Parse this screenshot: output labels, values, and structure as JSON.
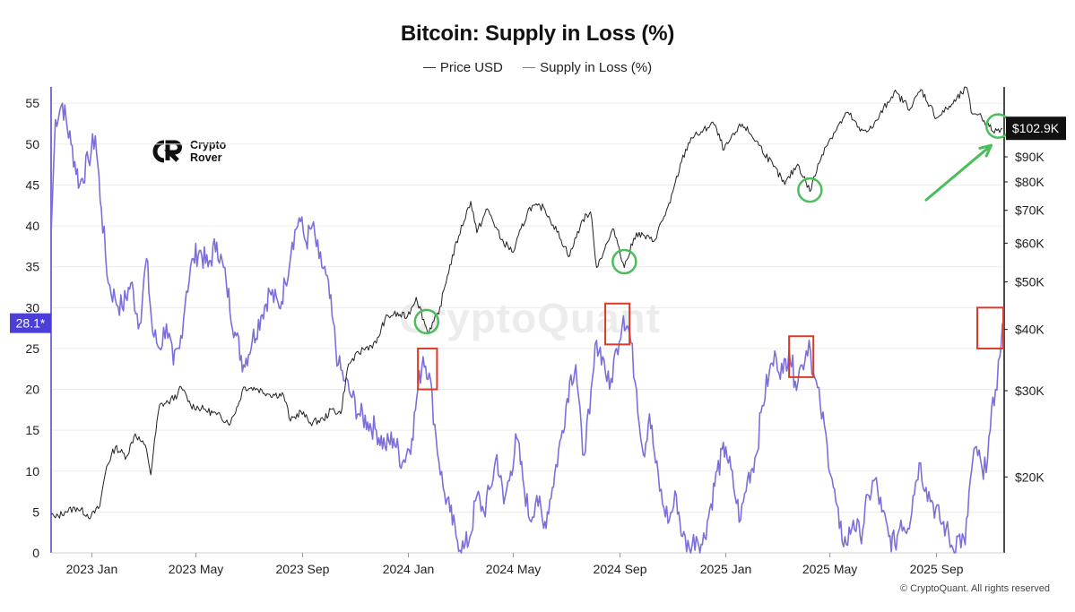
{
  "chart_data": {
    "type": "line",
    "title": "Bitcoin: Supply in Loss (%)",
    "legend": [
      {
        "name": "Price USD",
        "color": "#333333"
      },
      {
        "name": "Supply in Loss (%)",
        "color": "#7b6fdc"
      }
    ],
    "x_ticks": [
      "2023 Jan",
      "2023 May",
      "2023 Sep",
      "2024 Jan",
      "2024 May",
      "2024 Sep",
      "2025 Jan",
      "2025 May",
      "2025 Sep"
    ],
    "x_tick_dates": [
      "2023-01-01",
      "2023-05-01",
      "2023-09-01",
      "2024-01-01",
      "2024-05-01",
      "2024-09-01",
      "2025-01-01",
      "2025-05-01",
      "2025-09-01"
    ],
    "x_range": [
      "2022-11-15",
      "2025-11-18"
    ],
    "left_axis": {
      "ticks": [
        0,
        5,
        10,
        15,
        20,
        25,
        30,
        35,
        40,
        45,
        50,
        55
      ],
      "range": [
        0,
        57
      ]
    },
    "right_axis": {
      "scale": "log",
      "ticks": [
        "$20K",
        "$30K",
        "$40K",
        "$50K",
        "$60K",
        "$70K",
        "$80K",
        "$90K"
      ],
      "tick_values": [
        20000,
        30000,
        40000,
        50000,
        60000,
        70000,
        80000,
        90000
      ],
      "range": [
        14000,
        125000
      ]
    },
    "current_loss_label": "28.1*",
    "current_loss_value": 28.1,
    "current_price_label": "$102.9K",
    "current_price_value": 102900,
    "series": [
      {
        "name": "Supply in Loss (%)",
        "points": [
          [
            "2022-11-15",
            39
          ],
          [
            "2022-11-20",
            53
          ],
          [
            "2022-11-28",
            55
          ],
          [
            "2022-12-08",
            50
          ],
          [
            "2022-12-18",
            45
          ],
          [
            "2022-12-28",
            48
          ],
          [
            "2023-01-05",
            51
          ],
          [
            "2023-01-12",
            42
          ],
          [
            "2023-01-20",
            33
          ],
          [
            "2023-01-28",
            31
          ],
          [
            "2023-02-05",
            30
          ],
          [
            "2023-02-15",
            33
          ],
          [
            "2023-02-25",
            28
          ],
          [
            "2023-03-05",
            36
          ],
          [
            "2023-03-12",
            27
          ],
          [
            "2023-03-20",
            25
          ],
          [
            "2023-03-28",
            28
          ],
          [
            "2023-04-05",
            23
          ],
          [
            "2023-04-12",
            25
          ],
          [
            "2023-04-20",
            32
          ],
          [
            "2023-04-28",
            36
          ],
          [
            "2023-05-05",
            37
          ],
          [
            "2023-05-15",
            35
          ],
          [
            "2023-05-25",
            38
          ],
          [
            "2023-06-05",
            33
          ],
          [
            "2023-06-15",
            27
          ],
          [
            "2023-06-25",
            23
          ],
          [
            "2023-07-05",
            26
          ],
          [
            "2023-07-15",
            29
          ],
          [
            "2023-07-25",
            32
          ],
          [
            "2023-08-05",
            30
          ],
          [
            "2023-08-12",
            33
          ],
          [
            "2023-08-20",
            38
          ],
          [
            "2023-08-28",
            41
          ],
          [
            "2023-09-05",
            38
          ],
          [
            "2023-09-12",
            40
          ],
          [
            "2023-09-20",
            36
          ],
          [
            "2023-09-28",
            34
          ],
          [
            "2023-10-05",
            29
          ],
          [
            "2023-10-12",
            23
          ],
          [
            "2023-10-20",
            21
          ],
          [
            "2023-10-28",
            19
          ],
          [
            "2023-11-05",
            17
          ],
          [
            "2023-11-15",
            16
          ],
          [
            "2023-11-25",
            15
          ],
          [
            "2023-12-05",
            13
          ],
          [
            "2023-12-15",
            14
          ],
          [
            "2023-12-25",
            11
          ],
          [
            "2024-01-05",
            14
          ],
          [
            "2024-01-12",
            20
          ],
          [
            "2024-01-18",
            24
          ],
          [
            "2024-01-25",
            22
          ],
          [
            "2024-02-02",
            14
          ],
          [
            "2024-02-10",
            8
          ],
          [
            "2024-02-18",
            5
          ],
          [
            "2024-02-25",
            2
          ],
          [
            "2024-03-05",
            0.5
          ],
          [
            "2024-03-12",
            2
          ],
          [
            "2024-03-20",
            7
          ],
          [
            "2024-03-28",
            5
          ],
          [
            "2024-04-05",
            8
          ],
          [
            "2024-04-12",
            12
          ],
          [
            "2024-04-20",
            6
          ],
          [
            "2024-04-28",
            10
          ],
          [
            "2024-05-05",
            14
          ],
          [
            "2024-05-12",
            9
          ],
          [
            "2024-05-20",
            4
          ],
          [
            "2024-05-28",
            7
          ],
          [
            "2024-06-05",
            3
          ],
          [
            "2024-06-15",
            8
          ],
          [
            "2024-06-25",
            14
          ],
          [
            "2024-07-05",
            21
          ],
          [
            "2024-07-12",
            23
          ],
          [
            "2024-07-20",
            12
          ],
          [
            "2024-07-28",
            17
          ],
          [
            "2024-08-05",
            26
          ],
          [
            "2024-08-12",
            24
          ],
          [
            "2024-08-20",
            20
          ],
          [
            "2024-08-28",
            25
          ],
          [
            "2024-09-05",
            29
          ],
          [
            "2024-09-12",
            27
          ],
          [
            "2024-09-20",
            20
          ],
          [
            "2024-09-28",
            12
          ],
          [
            "2024-10-05",
            17
          ],
          [
            "2024-10-12",
            11
          ],
          [
            "2024-10-20",
            6
          ],
          [
            "2024-10-28",
            4
          ],
          [
            "2024-11-05",
            7
          ],
          [
            "2024-11-12",
            2
          ],
          [
            "2024-11-20",
            0.5
          ],
          [
            "2024-11-28",
            2
          ],
          [
            "2024-12-05",
            1
          ],
          [
            "2024-12-15",
            6
          ],
          [
            "2024-12-22",
            10
          ],
          [
            "2025-01-01",
            13
          ],
          [
            "2025-01-10",
            8
          ],
          [
            "2025-01-18",
            4
          ],
          [
            "2025-01-26",
            9
          ],
          [
            "2025-02-05",
            12
          ],
          [
            "2025-02-12",
            18
          ],
          [
            "2025-02-20",
            22
          ],
          [
            "2025-02-28",
            24
          ],
          [
            "2025-03-08",
            22
          ],
          [
            "2025-03-15",
            25
          ],
          [
            "2025-03-22",
            21
          ],
          [
            "2025-03-30",
            23
          ],
          [
            "2025-04-07",
            26
          ],
          [
            "2025-04-12",
            22
          ],
          [
            "2025-04-20",
            18
          ],
          [
            "2025-04-28",
            13
          ],
          [
            "2025-05-05",
            8
          ],
          [
            "2025-05-12",
            3
          ],
          [
            "2025-05-20",
            1
          ],
          [
            "2025-05-28",
            4
          ],
          [
            "2025-06-05",
            2
          ],
          [
            "2025-06-15",
            7
          ],
          [
            "2025-06-22",
            9
          ],
          [
            "2025-06-30",
            5
          ],
          [
            "2025-07-08",
            2
          ],
          [
            "2025-07-15",
            1
          ],
          [
            "2025-07-22",
            4
          ],
          [
            "2025-07-30",
            3
          ],
          [
            "2025-08-05",
            7
          ],
          [
            "2025-08-12",
            11
          ],
          [
            "2025-08-20",
            8
          ],
          [
            "2025-08-28",
            6
          ],
          [
            "2025-09-05",
            4
          ],
          [
            "2025-09-12",
            3
          ],
          [
            "2025-09-20",
            0.5
          ],
          [
            "2025-09-26",
            2
          ],
          [
            "2025-10-04",
            1
          ],
          [
            "2025-10-10",
            9
          ],
          [
            "2025-10-17",
            13
          ],
          [
            "2025-10-25",
            9
          ],
          [
            "2025-11-02",
            15
          ],
          [
            "2025-11-08",
            20
          ],
          [
            "2025-11-13",
            24
          ],
          [
            "2025-11-16",
            28.1
          ]
        ]
      },
      {
        "name": "Price USD",
        "points": [
          [
            "2022-11-15",
            16800
          ],
          [
            "2022-11-20",
            16500
          ],
          [
            "2022-12-01",
            17000
          ],
          [
            "2022-12-15",
            17300
          ],
          [
            "2022-12-31",
            16600
          ],
          [
            "2023-01-10",
            17400
          ],
          [
            "2023-01-18",
            21000
          ],
          [
            "2023-01-28",
            23000
          ],
          [
            "2023-02-10",
            22000
          ],
          [
            "2023-02-20",
            24500
          ],
          [
            "2023-03-05",
            22800
          ],
          [
            "2023-03-10",
            20200
          ],
          [
            "2023-03-20",
            28000
          ],
          [
            "2023-03-30",
            28400
          ],
          [
            "2023-04-10",
            29500
          ],
          [
            "2023-04-14",
            30500
          ],
          [
            "2023-04-25",
            28000
          ],
          [
            "2023-05-10",
            27500
          ],
          [
            "2023-05-25",
            26800
          ],
          [
            "2023-06-10",
            25800
          ],
          [
            "2023-06-20",
            28500
          ],
          [
            "2023-06-25",
            30500
          ],
          [
            "2023-07-10",
            30300
          ],
          [
            "2023-07-25",
            29500
          ],
          [
            "2023-08-10",
            29400
          ],
          [
            "2023-08-18",
            26000
          ],
          [
            "2023-08-30",
            27200
          ],
          [
            "2023-09-10",
            25800
          ],
          [
            "2023-09-25",
            26200
          ],
          [
            "2023-10-05",
            27500
          ],
          [
            "2023-10-15",
            26900
          ],
          [
            "2023-10-24",
            34000
          ],
          [
            "2023-11-10",
            36500
          ],
          [
            "2023-11-25",
            37500
          ],
          [
            "2023-12-05",
            42000
          ],
          [
            "2023-12-15",
            43000
          ],
          [
            "2023-12-31",
            42500
          ],
          [
            "2024-01-10",
            46500
          ],
          [
            "2024-01-23",
            39500
          ],
          [
            "2024-02-05",
            43000
          ],
          [
            "2024-02-15",
            51500
          ],
          [
            "2024-02-28",
            62000
          ],
          [
            "2024-03-13",
            73000
          ],
          [
            "2024-03-20",
            63000
          ],
          [
            "2024-04-01",
            70500
          ],
          [
            "2024-04-17",
            61000
          ],
          [
            "2024-05-01",
            57500
          ],
          [
            "2024-05-20",
            71000
          ],
          [
            "2024-06-05",
            71000
          ],
          [
            "2024-06-25",
            61000
          ],
          [
            "2024-07-05",
            56500
          ],
          [
            "2024-07-20",
            67000
          ],
          [
            "2024-07-29",
            69500
          ],
          [
            "2024-08-05",
            53500
          ],
          [
            "2024-08-25",
            64000
          ],
          [
            "2024-09-06",
            53500
          ],
          [
            "2024-09-20",
            63000
          ],
          [
            "2024-10-10",
            60500
          ],
          [
            "2024-10-29",
            72500
          ],
          [
            "2024-11-11",
            88000
          ],
          [
            "2024-11-22",
            98500
          ],
          [
            "2024-12-05",
            101000
          ],
          [
            "2024-12-17",
            106000
          ],
          [
            "2024-12-30",
            93000
          ],
          [
            "2025-01-20",
            105000
          ],
          [
            "2025-02-05",
            97000
          ],
          [
            "2025-02-25",
            86000
          ],
          [
            "2025-03-10",
            79000
          ],
          [
            "2025-03-25",
            87000
          ],
          [
            "2025-04-08",
            76500
          ],
          [
            "2025-04-25",
            94000
          ],
          [
            "2025-05-22",
            111000
          ],
          [
            "2025-06-05",
            101500
          ],
          [
            "2025-06-20",
            103500
          ],
          [
            "2025-07-14",
            122000
          ],
          [
            "2025-08-02",
            113000
          ],
          [
            "2025-08-14",
            123500
          ],
          [
            "2025-09-01",
            108000
          ],
          [
            "2025-09-20",
            115500
          ],
          [
            "2025-10-06",
            124500
          ],
          [
            "2025-10-11",
            111000
          ],
          [
            "2025-10-20",
            110000
          ],
          [
            "2025-11-05",
            101500
          ],
          [
            "2025-11-16",
            102900
          ]
        ]
      }
    ],
    "annotations": {
      "red_boxes": [
        {
          "from": "2024-01-12",
          "to": "2024-02-03",
          "y_low": 20,
          "y_high": 25
        },
        {
          "from": "2024-08-15",
          "to": "2024-09-12",
          "y_low": 25.5,
          "y_high": 30.5
        },
        {
          "from": "2025-03-15",
          "to": "2025-04-12",
          "y_low": 21.5,
          "y_high": 26.5
        },
        {
          "from": "2025-10-18",
          "to": "2025-11-17",
          "y_low": 25,
          "y_high": 30
        }
      ],
      "green_circles": [
        {
          "date": "2024-01-22",
          "price": 41500
        },
        {
          "date": "2024-09-06",
          "price": 55000
        },
        {
          "date": "2025-04-08",
          "price": 77000
        },
        {
          "date": "2025-11-11",
          "price": 104000
        }
      ],
      "green_arrow": {
        "from": [
          "2025-08-20",
          73500
        ],
        "to": [
          "2025-11-03",
          95000
        ]
      }
    }
  },
  "logo": {
    "line1": "Crypto",
    "line2": "Rover"
  },
  "watermark": "CryptoQuant",
  "copyright": "© CryptoQuant. All rights reserved",
  "colors": {
    "supply": "#7b6fdc",
    "price": "#222222",
    "badge": "#4b3fd8",
    "annotation_red": "#d93a2b",
    "annotation_green": "#4bbd5b"
  }
}
